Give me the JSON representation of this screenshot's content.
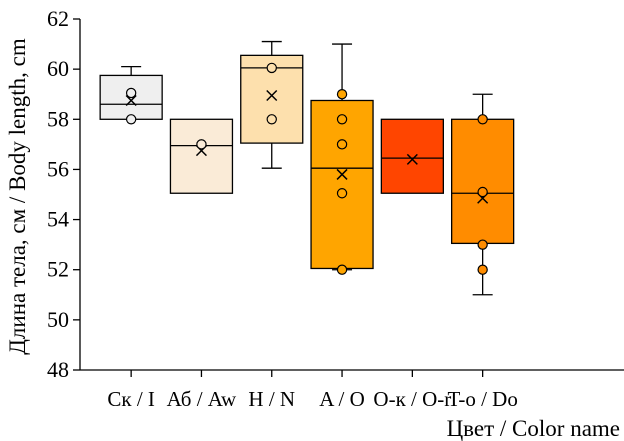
{
  "chart_data": {
    "type": "box",
    "title": "",
    "xlabel": "Цвет / Color name",
    "ylabel": "Длина тела, см / Body length, cm",
    "ylim": [
      48,
      62
    ],
    "yticks": [
      48,
      50,
      52,
      54,
      56,
      58,
      60,
      62
    ],
    "grid": false,
    "categories": [
      {
        "label": "Ск / I",
        "color": "#efefef",
        "whisker_low": 58.0,
        "q1": 58.0,
        "median": 58.6,
        "q3": 59.75,
        "whisker_high": 60.1,
        "mean": 58.75,
        "points": [
          59.05,
          58.0
        ]
      },
      {
        "label": "Аб / Aw",
        "color": "#faebd7",
        "whisker_low": 55.05,
        "q1": 55.05,
        "median": 56.95,
        "q3": 58.0,
        "whisker_high": 58.0,
        "mean": 56.75,
        "points": [
          57.0
        ]
      },
      {
        "label": "H / N",
        "color": "#fde0ad",
        "whisker_low": 56.05,
        "q1": 57.05,
        "median": 60.05,
        "q3": 60.55,
        "whisker_high": 61.1,
        "mean": 58.95,
        "points": [
          60.05,
          58.0
        ]
      },
      {
        "label": "A / O",
        "color": "#ffa500",
        "whisker_low": 52.0,
        "q1": 52.05,
        "median": 56.05,
        "q3": 58.75,
        "whisker_high": 61.0,
        "mean": 55.8,
        "points": [
          59.0,
          58.0,
          57.0,
          55.05,
          52.0
        ]
      },
      {
        "label": "O-к / O-r",
        "color": "#ff4500",
        "whisker_low": 55.05,
        "q1": 55.05,
        "median": 56.45,
        "q3": 58.0,
        "whisker_high": 58.0,
        "mean": 56.4,
        "points": []
      },
      {
        "label": "T-o / Do",
        "color": "#ff8c00",
        "whisker_low": 51.0,
        "q1": 53.05,
        "median": 55.05,
        "q3": 58.0,
        "whisker_high": 59.0,
        "mean": 54.85,
        "points": [
          58.0,
          55.1,
          53.0,
          52.0
        ]
      }
    ]
  }
}
